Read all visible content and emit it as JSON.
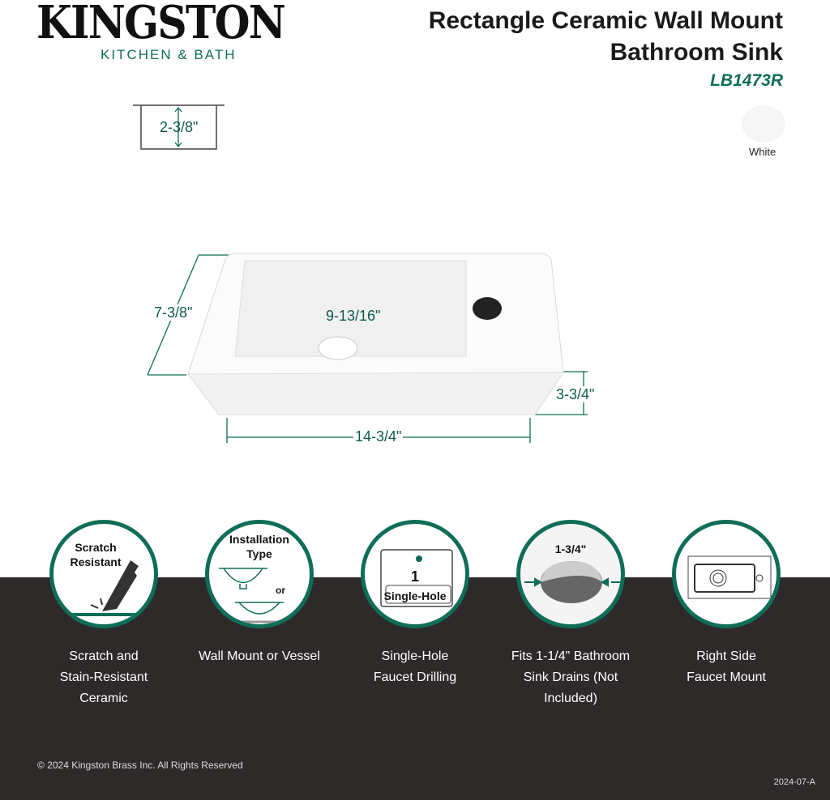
{
  "brand": {
    "name": "KINGSTON",
    "sub": "KITCHEN & BATH"
  },
  "product": {
    "title_line1": "Rectangle Ceramic Wall Mount",
    "title_line2": "Bathroom Sink",
    "sku": "LB1473R",
    "color_name": "White",
    "color_hex": "#f6f6f6"
  },
  "dimensions": {
    "depth_side": "2-3/8\"",
    "depth": "7-3/8\"",
    "basin_width": "9-13/16\"",
    "height": "3-3/4\"",
    "width": "14-3/4\""
  },
  "features": [
    {
      "icon_text": [
        "Scratch",
        "Resistant"
      ],
      "caption": [
        "Scratch and",
        "Stain-Resistant",
        "Ceramic"
      ]
    },
    {
      "icon_text": [
        "Installation",
        "Type",
        "or"
      ],
      "caption": [
        "Wall Mount or Vessel"
      ]
    },
    {
      "icon_text": [
        "1",
        "Single-Hole"
      ],
      "caption": [
        "Single-Hole",
        "Faucet Drilling"
      ]
    },
    {
      "icon_text": [
        "1-3/4\""
      ],
      "caption": [
        "Fits 1-1/4\" Bathroom",
        "Sink Drains (Not",
        "Included)"
      ]
    },
    {
      "icon_text": [],
      "caption": [
        "Right Side",
        "Faucet Mount"
      ]
    }
  ],
  "footer": {
    "copyright": "© 2024 Kingston Brass Inc. All Rights Reserved",
    "code": "2024-07-A"
  },
  "colors": {
    "accent": "#0f6d58",
    "dark": "#2d2a29"
  }
}
